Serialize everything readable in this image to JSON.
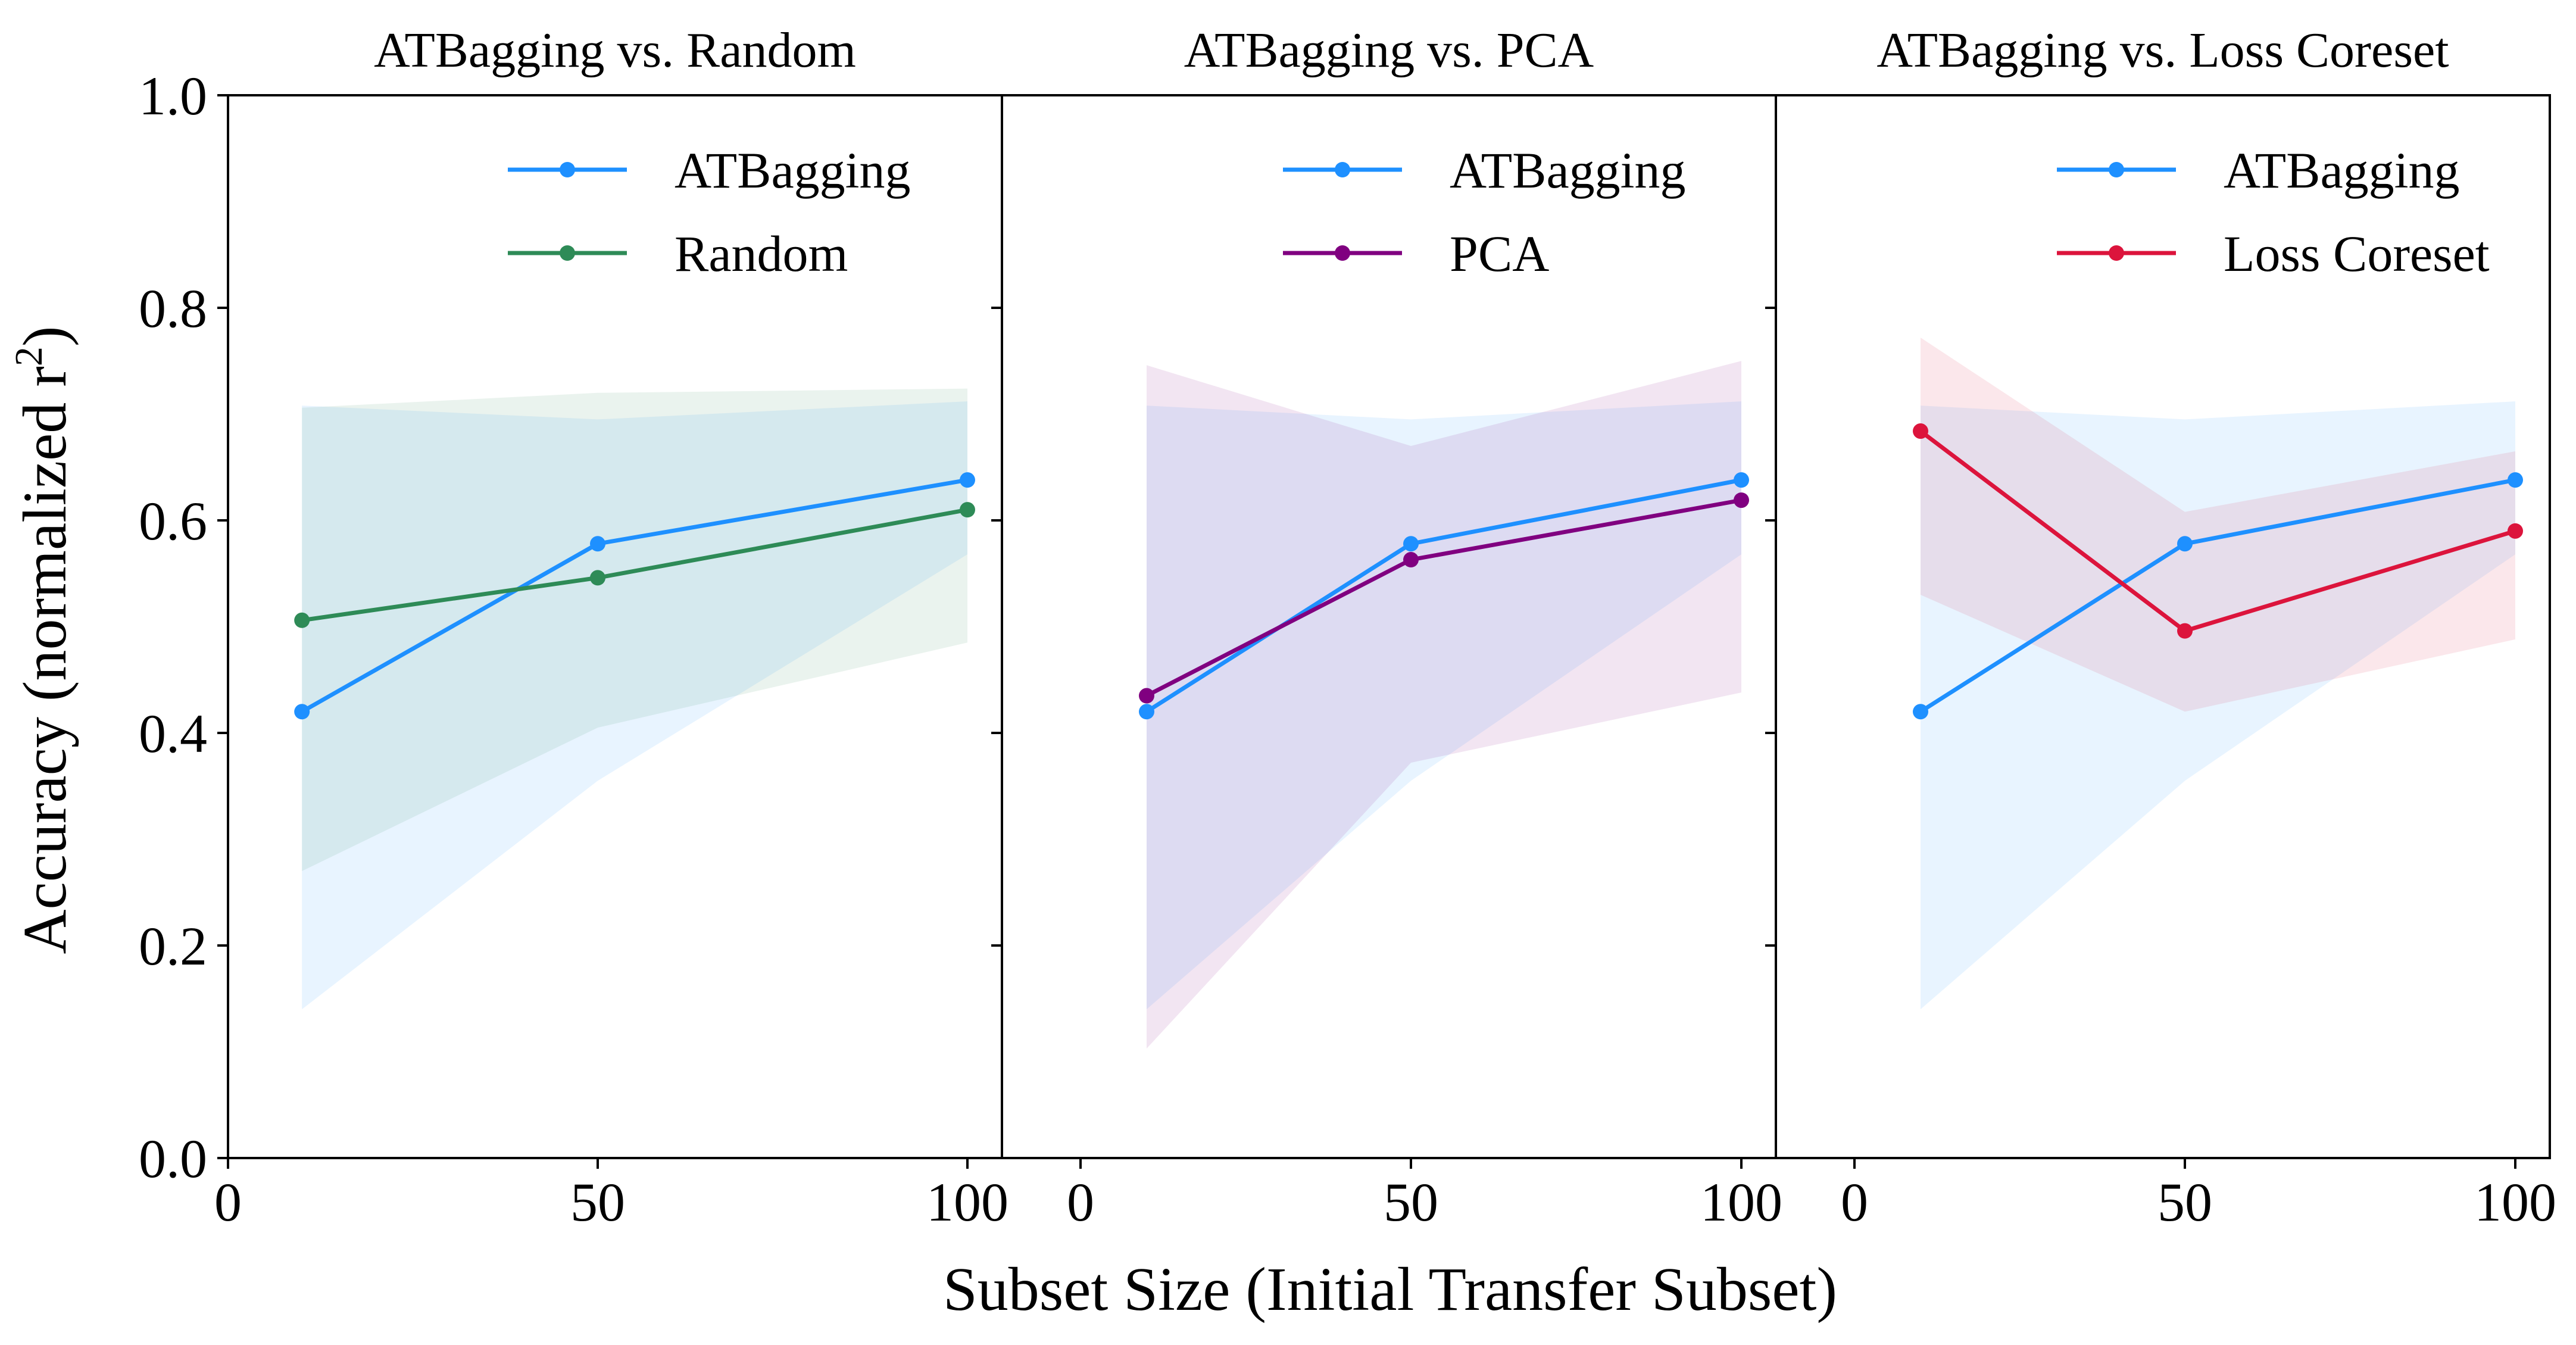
{
  "figure": {
    "ylabel": "Accuracy (normalized r",
    "ylabel_sup": "2",
    "ylabel_close": ")",
    "xlabel": "Subset Size (Initial Transfer Subset)"
  },
  "chart_data": [
    {
      "type": "line",
      "title": "ATBagging vs. Random",
      "xlim": [
        0,
        100
      ],
      "ylim": [
        0.0,
        1.0
      ],
      "xticks": [
        0,
        50,
        100
      ],
      "xtick_labels": [
        "0",
        "50",
        "100"
      ],
      "yticks": [
        0.0,
        0.2,
        0.4,
        0.6,
        0.8,
        1.0
      ],
      "ytick_labels": [
        "0.0",
        "0.2",
        "0.4",
        "0.6",
        "0.8",
        "1.0"
      ],
      "legend": "top-right",
      "series": [
        {
          "name": "ATBagging",
          "color": "#1e90ff",
          "x": [
            10,
            50,
            100
          ],
          "y": [
            0.42,
            0.578,
            0.638
          ],
          "lower": [
            0.14,
            0.355,
            0.568
          ],
          "upper": [
            0.708,
            0.695,
            0.712
          ]
        },
        {
          "name": "Random",
          "color": "#2e8b57",
          "x": [
            10,
            50,
            100
          ],
          "y": [
            0.506,
            0.546,
            0.61
          ],
          "lower": [
            0.27,
            0.405,
            0.485
          ],
          "upper": [
            0.706,
            0.72,
            0.724
          ]
        }
      ]
    },
    {
      "type": "line",
      "title": "ATBagging vs. PCA",
      "xlim": [
        0,
        100
      ],
      "ylim": [
        0.0,
        1.0
      ],
      "xticks": [
        0,
        50,
        100
      ],
      "xtick_labels": [
        "0",
        "50",
        "100"
      ],
      "legend": "top-right",
      "series": [
        {
          "name": "ATBagging",
          "color": "#1e90ff",
          "x": [
            10,
            50,
            100
          ],
          "y": [
            0.42,
            0.578,
            0.638
          ],
          "lower": [
            0.14,
            0.355,
            0.568
          ],
          "upper": [
            0.708,
            0.695,
            0.712
          ]
        },
        {
          "name": "PCA",
          "color": "#800080",
          "x": [
            10,
            50,
            100
          ],
          "y": [
            0.435,
            0.563,
            0.619
          ],
          "lower": [
            0.103,
            0.372,
            0.438
          ],
          "upper": [
            0.746,
            0.67,
            0.75
          ]
        }
      ]
    },
    {
      "type": "line",
      "title": "ATBagging vs. Loss Coreset",
      "xlim": [
        0,
        100
      ],
      "ylim": [
        0.0,
        1.0
      ],
      "xticks": [
        0,
        50,
        100
      ],
      "xtick_labels": [
        "0",
        "50",
        "100"
      ],
      "legend": "top-right",
      "series": [
        {
          "name": "ATBagging",
          "color": "#1e90ff",
          "x": [
            10,
            50,
            100
          ],
          "y": [
            0.42,
            0.578,
            0.638
          ],
          "lower": [
            0.14,
            0.355,
            0.568
          ],
          "upper": [
            0.708,
            0.695,
            0.712
          ]
        },
        {
          "name": "Loss Coreset",
          "color": "#dc143c",
          "x": [
            10,
            50,
            100
          ],
          "y": [
            0.684,
            0.496,
            0.59
          ],
          "lower": [
            0.53,
            0.42,
            0.488
          ],
          "upper": [
            0.772,
            0.608,
            0.665
          ]
        }
      ]
    }
  ]
}
